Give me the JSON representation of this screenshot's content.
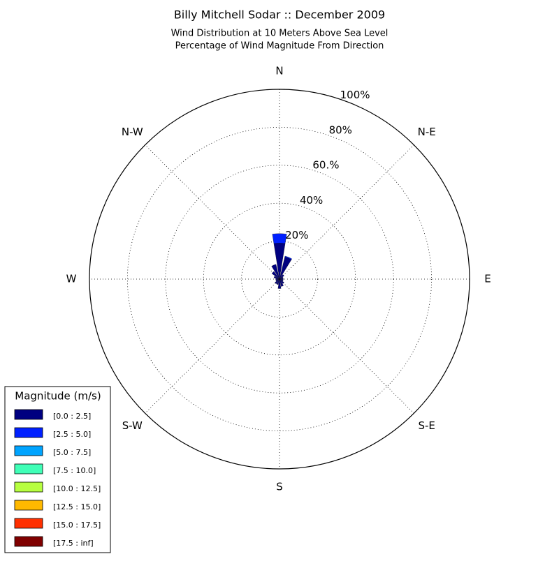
{
  "chart_data": {
    "type": "windrose",
    "title": "Billy Mitchell Sodar :: December 2009",
    "subtitle": [
      "Wind Distribution at 10 Meters Above Sea Level",
      "Percentage of Wind Magnitude From Direction"
    ],
    "categories": [
      "N",
      null,
      "N-E",
      null,
      "E",
      null,
      "S-E",
      null,
      "S",
      null,
      "S-W",
      null,
      "W",
      null,
      "N-W",
      null
    ],
    "rlim": [
      0,
      100
    ],
    "rticks": [
      {
        "value": 20,
        "label": "20%"
      },
      {
        "value": 40,
        "label": "40%"
      },
      {
        "value": 60,
        "label": "60.%"
      },
      {
        "value": 80,
        "label": "80%"
      },
      {
        "value": 100,
        "label": "100%"
      }
    ],
    "grid": true,
    "legend_title": "Magnitude (m/s)",
    "legend_position": "lower left",
    "series": [
      {
        "name": "[0.0 : 2.5]",
        "color": "#000080",
        "values": [
          19,
          12,
          3,
          2,
          2,
          2,
          3,
          4,
          5,
          3,
          3,
          2,
          2,
          3,
          5,
          8
        ]
      },
      {
        "name": "[2.5 : 5.0]",
        "color": "#0020ff",
        "values": [
          5,
          0.5,
          0,
          0,
          0,
          0,
          0,
          0,
          0,
          0,
          0,
          0,
          0,
          0,
          0,
          0
        ]
      },
      {
        "name": "[5.0 : 7.5]",
        "color": "#00a4ff",
        "values": [
          0,
          0,
          0,
          0,
          0,
          0,
          0,
          0,
          0,
          0,
          0,
          0,
          0,
          0,
          0,
          0
        ]
      },
      {
        "name": "[7.5 : 10.0]",
        "color": "#40ffb7",
        "values": [
          0,
          0,
          0,
          0,
          0,
          0,
          0,
          0,
          0,
          0,
          0,
          0,
          0,
          0,
          0,
          0
        ]
      },
      {
        "name": "[10.0 : 12.5]",
        "color": "#b7ff40",
        "values": [
          0,
          0,
          0,
          0,
          0,
          0,
          0,
          0,
          0,
          0,
          0,
          0,
          0,
          0,
          0,
          0
        ]
      },
      {
        "name": "[12.5 : 15.0]",
        "color": "#ffb900",
        "values": [
          0,
          0,
          0,
          0,
          0,
          0,
          0,
          0,
          0,
          0,
          0,
          0,
          0,
          0,
          0,
          0
        ]
      },
      {
        "name": "[15.0 : 17.5]",
        "color": "#ff3000",
        "values": [
          0,
          0,
          0,
          0,
          0,
          0,
          0,
          0,
          0,
          0,
          0,
          0,
          0,
          0,
          0,
          0
        ]
      },
      {
        "name": "[17.5 : inf]",
        "color": "#800000",
        "values": [
          0,
          0,
          0,
          0,
          0,
          0,
          0,
          0,
          0,
          0,
          0,
          0,
          0,
          0,
          0,
          0
        ]
      }
    ]
  }
}
